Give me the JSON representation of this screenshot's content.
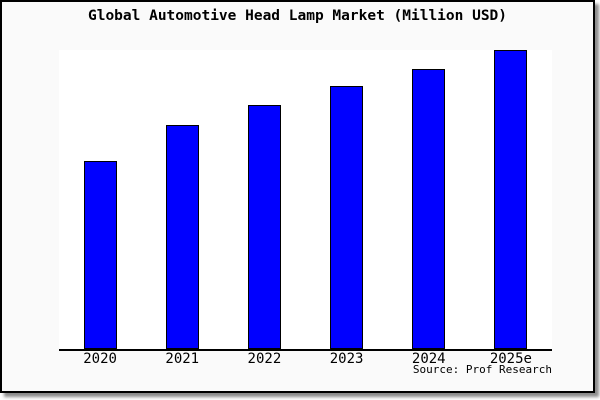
{
  "chart_data": {
    "type": "bar",
    "title": "Global Automotive Head Lamp Market (Million USD)",
    "categories": [
      "2020",
      "2021",
      "2022",
      "2023",
      "2024",
      "2025e"
    ],
    "values": [
      63,
      75,
      81.5,
      88,
      93.5,
      100
    ],
    "ylim": [
      0,
      100
    ],
    "value_scale_note": "no y-axis ticks shown; values are relative bar heights with the tallest bar (2025e) = 100",
    "xlabel": "",
    "ylabel": "",
    "grid": false,
    "legend": false,
    "source": "Source: Prof Research",
    "colors": {
      "bar_fill": "#0000ff",
      "bar_border": "#000000",
      "frame_background": "#fafafa",
      "plot_background": "#ffffff",
      "axis": "#000000",
      "text": "#000000",
      "frame_border": "#000000",
      "shadow": "#8c8c8c"
    }
  }
}
